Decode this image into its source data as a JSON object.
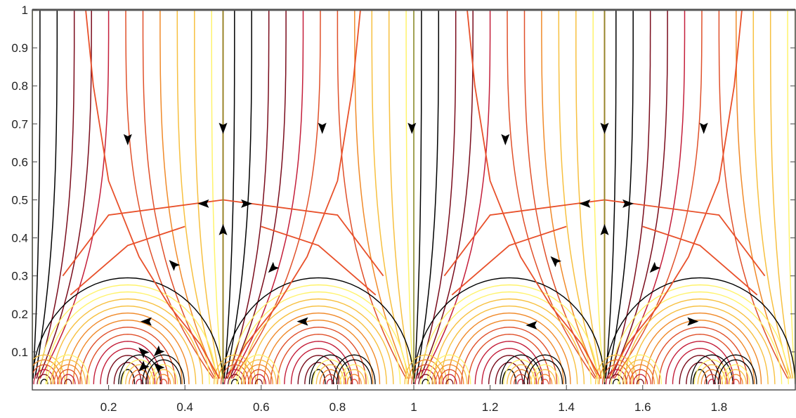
{
  "chart_data": {
    "type": "line",
    "title": "",
    "xlabel": "",
    "ylabel": "",
    "xlim": [
      0,
      2
    ],
    "ylim": [
      0,
      1
    ],
    "grid": false,
    "legend": "none",
    "x_ticks": [
      "0.2",
      "0.4",
      "0.6",
      "0.8",
      "1",
      "1.2",
      "1.4",
      "1.6",
      "1.8"
    ],
    "y_ticks": [
      "0.1",
      "0.2",
      "0.3",
      "0.4",
      "0.5",
      "0.6",
      "0.7",
      "0.8",
      "0.9",
      "1"
    ],
    "x_tick_values": [
      0.2,
      0.4,
      0.6,
      0.8,
      1.0,
      1.2,
      1.4,
      1.6,
      1.8
    ],
    "y_tick_values": [
      0.1,
      0.2,
      0.3,
      0.4,
      0.5,
      0.6,
      0.7,
      0.8,
      0.9,
      1.0
    ],
    "periodicity_x": 1,
    "fixed_points": [
      {
        "x": 0.5,
        "y": 0.5
      },
      {
        "x": 1.5,
        "y": 0.5
      }
    ],
    "singular_points": [
      0,
      0.5,
      1,
      1.5,
      2
    ],
    "colormap": [
      "#000000",
      "#7a0c1c",
      "#c41e3a",
      "#e0502a",
      "#f08a2a",
      "#f7c040",
      "#fff36b"
    ],
    "series": [
      {
        "values": [
          [
            0.14,
            1
          ],
          [
            0.16,
            0.8
          ],
          [
            0.2,
            0.55
          ],
          [
            0.28,
            0.35
          ],
          [
            0.36,
            0.22
          ],
          [
            0.44,
            0.12
          ],
          [
            0.49,
            0.03
          ]
        ]
      },
      {
        "values": [
          [
            0.86,
            1
          ],
          [
            0.84,
            0.8
          ],
          [
            0.8,
            0.55
          ],
          [
            0.72,
            0.35
          ],
          [
            0.64,
            0.22
          ],
          [
            0.56,
            0.12
          ],
          [
            0.51,
            0.03
          ]
        ]
      },
      {
        "values": [
          [
            0.08,
            0.3
          ],
          [
            0.2,
            0.46
          ],
          [
            0.5,
            0.5
          ],
          [
            0.8,
            0.46
          ],
          [
            0.92,
            0.3
          ]
        ]
      },
      {
        "values": [
          [
            0.1,
            0.25
          ],
          [
            0.25,
            0.38
          ],
          [
            0.4,
            0.43
          ]
        ]
      },
      {
        "values": [
          [
            0.6,
            0.43
          ],
          [
            0.75,
            0.38
          ],
          [
            0.9,
            0.25
          ]
        ]
      }
    ],
    "arrows": [
      {
        "x": 0.25,
        "y": 0.66,
        "dir": "down"
      },
      {
        "x": 0.5,
        "y": 0.69,
        "dir": "down"
      },
      {
        "x": 0.76,
        "y": 0.69,
        "dir": "down"
      },
      {
        "x": 0.995,
        "y": 0.69,
        "dir": "down"
      },
      {
        "x": 1.24,
        "y": 0.66,
        "dir": "down"
      },
      {
        "x": 1.5,
        "y": 0.69,
        "dir": "down"
      },
      {
        "x": 1.76,
        "y": 0.69,
        "dir": "down"
      },
      {
        "x": 0.45,
        "y": 0.49,
        "dir": "left"
      },
      {
        "x": 0.56,
        "y": 0.49,
        "dir": "right"
      },
      {
        "x": 1.45,
        "y": 0.49,
        "dir": "left"
      },
      {
        "x": 1.56,
        "y": 0.49,
        "dir": "right"
      },
      {
        "x": 0.5,
        "y": 0.42,
        "dir": "up"
      },
      {
        "x": 1.5,
        "y": 0.42,
        "dir": "up"
      },
      {
        "x": 0.37,
        "y": 0.33,
        "dir": "upleft"
      },
      {
        "x": 0.63,
        "y": 0.32,
        "dir": "downleft"
      },
      {
        "x": 1.37,
        "y": 0.34,
        "dir": "upleft"
      },
      {
        "x": 1.63,
        "y": 0.32,
        "dir": "downleft"
      },
      {
        "x": 0.3,
        "y": 0.18,
        "dir": "left"
      },
      {
        "x": 0.71,
        "y": 0.18,
        "dir": "left"
      },
      {
        "x": 1.31,
        "y": 0.17,
        "dir": "left"
      },
      {
        "x": 1.73,
        "y": 0.18,
        "dir": "right"
      },
      {
        "x": 0.29,
        "y": 0.1,
        "dir": "upleft"
      },
      {
        "x": 0.33,
        "y": 0.1,
        "dir": "downleft"
      },
      {
        "x": 0.29,
        "y": 0.06,
        "dir": "downleft"
      },
      {
        "x": 0.33,
        "y": 0.06,
        "dir": "upleft"
      }
    ]
  }
}
